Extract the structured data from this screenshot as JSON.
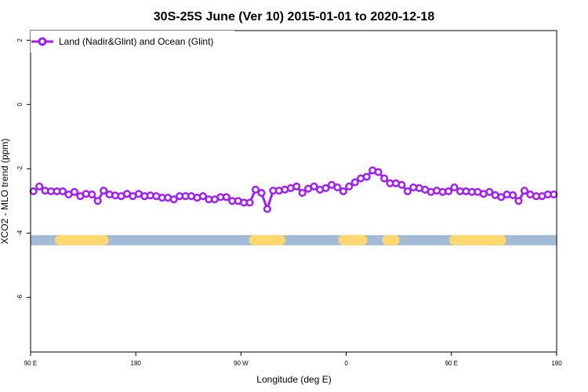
{
  "chart_data": {
    "type": "line",
    "title": "30S-25S June (Ver 10)   2015-01-01 to 2020-12-18",
    "xlabel": "Longitude (deg E)",
    "ylabel": "XCO2 - MLO trend (ppm)",
    "xlim": [
      90,
      450
    ],
    "ylim": [
      -7.7,
      2.3
    ],
    "x_ticks": [
      {
        "value": 90,
        "label": "90 E"
      },
      {
        "value": 162,
        "label": "180"
      },
      {
        "value": 234,
        "label": "90 W"
      },
      {
        "value": 306,
        "label": "0"
      },
      {
        "value": 378,
        "label": "90 E"
      },
      {
        "value": 450,
        "label": "180"
      }
    ],
    "y_ticks": [
      {
        "value": 2,
        "label": "2"
      },
      {
        "value": 0,
        "label": "0"
      },
      {
        "value": -2,
        "label": "-2"
      },
      {
        "value": -4,
        "label": "-4"
      },
      {
        "value": -6,
        "label": "-6"
      }
    ],
    "legend": {
      "position": "top-left",
      "entries": [
        {
          "name": "Land (Nadir&Glint) and Ocean (Glint)",
          "color": "#a020f0"
        }
      ]
    },
    "grid": false,
    "surface_band": {
      "y": -4.22,
      "ocean_color": "#a3bbd7",
      "land_color": "#fed86f",
      "land_segments": [
        [
          110,
          140
        ],
        [
          243,
          261
        ],
        [
          304,
          317
        ],
        [
          334,
          339
        ],
        [
          380,
          412
        ]
      ]
    },
    "series": [
      {
        "name": "Land (Nadir&Glint) and Ocean (Glint)",
        "color": "#a020f0",
        "x": [
          92,
          96,
          100,
          104,
          108,
          112,
          116,
          120,
          124,
          128,
          132,
          136,
          140,
          144,
          148,
          152,
          156,
          160,
          164,
          168,
          172,
          176,
          180,
          184,
          188,
          192,
          196,
          200,
          204,
          208,
          212,
          216,
          220,
          224,
          228,
          232,
          236,
          240,
          244,
          248,
          252,
          256,
          260,
          264,
          268,
          272,
          276,
          280,
          284,
          288,
          292,
          296,
          300,
          304,
          308,
          312,
          316,
          320,
          324,
          328,
          332,
          336,
          340,
          344,
          348,
          352,
          356,
          360,
          364,
          368,
          372,
          376,
          380,
          384,
          388,
          392,
          396,
          400,
          404,
          408,
          412,
          416,
          420,
          424,
          428,
          432,
          436,
          440,
          444,
          448
        ],
        "y": [
          -2.7,
          -2.55,
          -2.68,
          -2.7,
          -2.7,
          -2.7,
          -2.8,
          -2.72,
          -2.85,
          -2.78,
          -2.8,
          -3.0,
          -2.68,
          -2.8,
          -2.83,
          -2.85,
          -2.78,
          -2.85,
          -2.78,
          -2.85,
          -2.83,
          -2.85,
          -2.9,
          -2.9,
          -2.95,
          -2.85,
          -2.85,
          -2.85,
          -2.9,
          -2.85,
          -2.95,
          -2.95,
          -2.88,
          -2.88,
          -3.0,
          -3.0,
          -3.05,
          -3.05,
          -2.65,
          -2.75,
          -3.25,
          -2.68,
          -2.68,
          -2.65,
          -2.6,
          -2.55,
          -2.75,
          -2.62,
          -2.55,
          -2.65,
          -2.6,
          -2.5,
          -2.58,
          -2.7,
          -2.55,
          -2.42,
          -2.3,
          -2.25,
          -2.05,
          -2.1,
          -2.3,
          -2.45,
          -2.45,
          -2.5,
          -2.7,
          -2.58,
          -2.6,
          -2.65,
          -2.72,
          -2.68,
          -2.72,
          -2.7,
          -2.58,
          -2.7,
          -2.7,
          -2.72,
          -2.72,
          -2.78,
          -2.72,
          -2.82,
          -2.88,
          -2.8,
          -2.82,
          -3.0,
          -2.68,
          -2.8,
          -2.85,
          -2.85,
          -2.8,
          -2.8
        ]
      }
    ]
  }
}
